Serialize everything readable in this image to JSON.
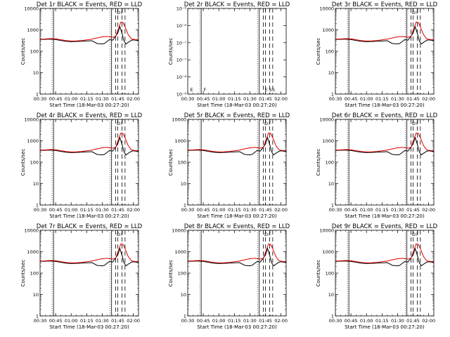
{
  "chart_data": [
    {
      "type": "line",
      "title": "Det 1r BLACK = Events, RED = LLD",
      "xlabel": "Start Time (18-Mar-03 00:27:20)",
      "ylabel": "Counts/sec",
      "ylim": [
        1,
        10000
      ],
      "y_scale": "log",
      "x_range": [
        "00:30",
        "02:05"
      ],
      "y_tick_labels": [
        "1",
        "10",
        "100",
        "1000",
        "10000"
      ],
      "x_tick_labels": [
        "00:30",
        "00:45",
        "01:00",
        "01:15",
        "01:30",
        "01:45",
        "02:00"
      ],
      "markers": [
        "D",
        "F"
      ],
      "series": []
    },
    {
      "type": "line",
      "title": "Det 2r BLACK = Events, RED = LLD",
      "xlabel": "Start Time (18-Mar-03 00:27:20)",
      "ylabel": "Counts/sec",
      "ylim": [
        1e-08,
        1e-06
      ],
      "y_scale": "log",
      "x_range": [
        "00:30",
        "02:05"
      ],
      "y_tick_labels": [
        "10⁻⁸",
        "10⁻⁸",
        "10⁻⁷",
        "10⁻⁷",
        "10⁻⁶",
        "10⁻⁶"
      ],
      "x_tick_labels": [
        "00:30",
        "00:45",
        "01:00",
        "01:15",
        "01:30",
        "01:45",
        "02:00"
      ],
      "markers": [
        "E",
        "F",
        "E",
        "S",
        "S"
      ],
      "series": []
    },
    {
      "type": "line",
      "title": "Det 3r BLACK = Events, RED = LLD",
      "xlabel": "Start Time (18-Mar-03 00:27:20)",
      "ylabel": "Counts/sec",
      "ylim": [
        1,
        10000
      ],
      "y_scale": "log",
      "x_range": [
        "00:30",
        "02:05"
      ],
      "y_tick_labels": [
        "1",
        "10",
        "100",
        "1000",
        "10000"
      ],
      "x_tick_labels": [
        "00:30",
        "00:45",
        "01:00",
        "01:15",
        "01:30",
        "01:45",
        "02:00"
      ],
      "markers": [
        "D",
        "F"
      ],
      "series": []
    },
    {
      "type": "line",
      "title": "Det 4r BLACK = Events, RED = LLD",
      "xlabel": "Start Time (18-Mar-03 00:27:20)",
      "ylabel": "Counts/sec",
      "ylim": [
        1,
        10000
      ],
      "y_scale": "log",
      "x_range": [
        "00:30",
        "02:05"
      ],
      "y_tick_labels": [
        "1",
        "10",
        "100",
        "1000",
        "10000"
      ],
      "x_tick_labels": [
        "00:30",
        "00:45",
        "01:00",
        "01:15",
        "01:30",
        "01:45",
        "02:00"
      ],
      "markers": [
        "D",
        "F"
      ],
      "series": []
    },
    {
      "type": "line",
      "title": "Det 5r BLACK = Events, RED = LLD",
      "xlabel": "Start Time (18-Mar-03 00:27:20)",
      "ylabel": "Counts/sec",
      "ylim": [
        1,
        10000
      ],
      "y_scale": "log",
      "x_range": [
        "00:30",
        "02:05"
      ],
      "y_tick_labels": [
        "1",
        "10",
        "100",
        "1000",
        "10000"
      ],
      "x_tick_labels": [
        "00:30",
        "00:45",
        "01:00",
        "01:15",
        "01:30",
        "01:45",
        "02:00"
      ],
      "markers": [
        "D",
        "F"
      ],
      "series": []
    },
    {
      "type": "line",
      "title": "Det 6r BLACK = Events, RED = LLD",
      "xlabel": "Start Time (18-Mar-03 00:27:20)",
      "ylabel": "Counts/sec",
      "ylim": [
        1,
        10000
      ],
      "y_scale": "log",
      "x_range": [
        "00:30",
        "02:05"
      ],
      "y_tick_labels": [
        "1",
        "10",
        "100",
        "1000",
        "10000"
      ],
      "x_tick_labels": [
        "00:30",
        "00:45",
        "01:00",
        "01:15",
        "01:30",
        "01:45",
        "02:00"
      ],
      "markers": [
        "D",
        "F"
      ],
      "series": []
    },
    {
      "type": "line",
      "title": "Det 7r BLACK = Events, RED = LLD",
      "xlabel": "Start Time (18-Mar-03 00:27:20)",
      "ylabel": "Counts/sec",
      "ylim": [
        1,
        10000
      ],
      "y_scale": "log",
      "x_range": [
        "00:30",
        "02:05"
      ],
      "y_tick_labels": [
        "1",
        "10",
        "100",
        "1000",
        "10000"
      ],
      "x_tick_labels": [
        "00:30",
        "00:45",
        "01:00",
        "01:15",
        "01:30",
        "01:45",
        "02:00"
      ],
      "markers": [
        "D",
        "F"
      ],
      "series": []
    },
    {
      "type": "line",
      "title": "Det 8r BLACK = Events, RED = LLD",
      "xlabel": "Start Time (18-Mar-03 00:27:20)",
      "ylabel": "Counts/sec",
      "ylim": [
        1,
        10000
      ],
      "y_scale": "log",
      "x_range": [
        "00:30",
        "02:05"
      ],
      "y_tick_labels": [
        "1",
        "10",
        "100",
        "1000",
        "10000"
      ],
      "x_tick_labels": [
        "00:30",
        "00:45",
        "01:00",
        "01:15",
        "01:30",
        "01:45",
        "02:00"
      ],
      "markers": [
        "D",
        "F"
      ],
      "series": []
    },
    {
      "type": "line",
      "title": "Det 9r BLACK = Events, RED = LLD",
      "xlabel": "Start Time (18-Mar-03 00:27:20)",
      "ylabel": "Counts/sec",
      "ylim": [
        1,
        10000
      ],
      "y_scale": "log",
      "x_range": [
        "00:30",
        "02:05"
      ],
      "y_tick_labels": [
        "1",
        "10",
        "100",
        "1000",
        "10000"
      ],
      "x_tick_labels": [
        "00:30",
        "00:45",
        "01:00",
        "01:15",
        "01:30",
        "01:45",
        "02:00"
      ],
      "markers": [
        "D",
        "F"
      ],
      "series": []
    }
  ],
  "shared_series": [
    {
      "key": "events",
      "color": "#000000",
      "x": [
        "00:30",
        "00:35",
        "00:40",
        "00:45",
        "00:50",
        "00:55",
        "01:00",
        "01:05",
        "01:10",
        "01:15",
        "01:20",
        "01:25",
        "01:30",
        "01:32",
        "01:37",
        "01:40",
        "01:42",
        "01:45",
        "01:47",
        "01:49",
        "01:51",
        "01:53",
        "01:55",
        "01:58",
        "02:00",
        "02:02",
        "02:05"
      ],
      "y": [
        350,
        360,
        370,
        350,
        320,
        290,
        280,
        285,
        295,
        300,
        310,
        230,
        220,
        230,
        350,
        330,
        440,
        700,
        1400,
        700,
        300,
        220,
        260,
        320,
        340,
        330,
        320
      ]
    },
    {
      "key": "lld",
      "color": "#dd0000",
      "x": [
        "00:30",
        "00:35",
        "00:40",
        "00:45",
        "00:50",
        "00:55",
        "01:00",
        "01:05",
        "01:10",
        "01:15",
        "01:20",
        "01:25",
        "01:30",
        "01:35",
        "01:40",
        "01:43",
        "01:46",
        "01:48",
        "01:50",
        "01:52",
        "01:55",
        "01:58",
        "02:00",
        "02:02",
        "02:05"
      ],
      "y": [
        360,
        375,
        390,
        380,
        345,
        315,
        300,
        305,
        315,
        340,
        370,
        420,
        470,
        490,
        450,
        500,
        1300,
        2300,
        2200,
        1400,
        600,
        380,
        360,
        350,
        345
      ]
    }
  ],
  "event_lines": {
    "solid": [
      "00:43",
      "01:39"
    ],
    "dashed": [
      "01:43",
      "01:45",
      "01:49",
      "01:52"
    ],
    "dotted": [
      "00:43",
      "01:39"
    ]
  }
}
